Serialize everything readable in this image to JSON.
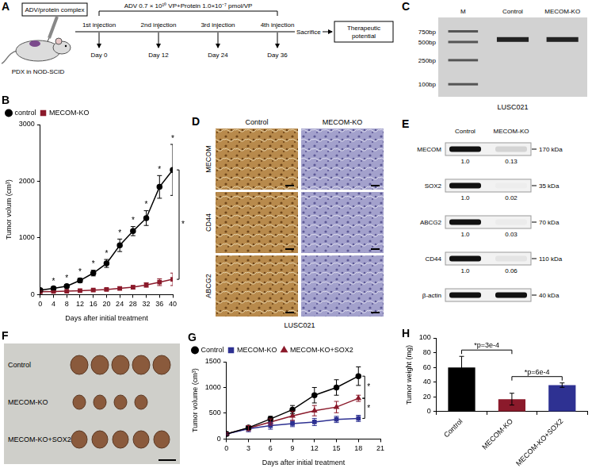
{
  "schematic": {
    "panel": "A",
    "complex": "ADV/protein complex",
    "model": "PDX in NOD-SCID",
    "dose": "ADV 0.7 × 10¹⁰ VP+Protein 1.0×10⁻⁷ pmol/VP",
    "injections": [
      {
        "label": "1st injection",
        "day": "Day 0"
      },
      {
        "label": "2nd injection",
        "day": "Day 12"
      },
      {
        "label": "3rd injection",
        "day": "Day 24"
      },
      {
        "label": "4th injection",
        "day": "Day 36"
      }
    ],
    "end": "Sacrifice",
    "outcome": "Therapeutic potential"
  },
  "gel": {
    "panel": "C",
    "lanes": [
      {
        "label": "M"
      },
      {
        "label": "Control",
        "band_bp": 550
      },
      {
        "label": "MECOM-KO",
        "band_bp": 550
      }
    ],
    "ladder": [
      {
        "value": 750,
        "label": "750bp"
      },
      {
        "value": 500,
        "label": "500bp"
      },
      {
        "value": 250,
        "label": "250bp"
      },
      {
        "value": 100,
        "label": "100bp"
      }
    ],
    "sample": "LUSC021"
  },
  "ihc": {
    "panel": "D",
    "columns": [
      "Control",
      "MECOM-KO"
    ],
    "rows": [
      "MECOM",
      "CD44",
      "ABCG2"
    ],
    "sample": "LUSC021"
  },
  "western": {
    "panel": "E",
    "columns": [
      "Control",
      "MECOM-KO"
    ],
    "rows": [
      {
        "protein": "MECOM",
        "size": "170 kDa",
        "quant": [
          "1.0",
          "0.13"
        ]
      },
      {
        "protein": "SOX2",
        "size": "35 kDa",
        "quant": [
          "1.0",
          "0.02"
        ]
      },
      {
        "protein": "ABCG2",
        "size": "70 kDa",
        "quant": [
          "1.0",
          "0.03"
        ]
      },
      {
        "protein": "CD44",
        "size": "110 kDa",
        "quant": [
          "1.0",
          "0.06"
        ]
      },
      {
        "protein": "β-actin",
        "size": "40 kDa"
      }
    ]
  },
  "photos": {
    "panel": "F",
    "rows": [
      {
        "label": "Control",
        "count": 5
      },
      {
        "label": "MECOM-KO",
        "count": 4
      },
      {
        "label": "MECOM-KO+SOX2",
        "count": 5
      }
    ]
  },
  "chart_data": [
    {
      "panel": "B",
      "type": "line",
      "x_label": "Days after initial treatment",
      "y_label": "Tumor volum (cm³)",
      "x": [
        0,
        4,
        8,
        12,
        16,
        20,
        24,
        28,
        32,
        36,
        40
      ],
      "xlim": [
        0,
        40
      ],
      "xticks": [
        0,
        4,
        8,
        12,
        16,
        20,
        24,
        28,
        32,
        36,
        40
      ],
      "ylim": [
        0,
        3000
      ],
      "yticks": [
        0,
        1000,
        2000,
        3000
      ],
      "grid": false,
      "legend": "upper left",
      "series": [
        {
          "name": "control",
          "color": "#000000",
          "marker": "circle",
          "values": [
            80,
            110,
            150,
            250,
            380,
            550,
            870,
            1120,
            1350,
            1900,
            2200
          ],
          "errors": [
            20,
            25,
            30,
            40,
            50,
            70,
            110,
            80,
            130,
            200,
            450
          ]
        },
        {
          "name": "MECOM-KO",
          "color": "#8b1a2b",
          "marker": "square",
          "values": [
            50,
            55,
            60,
            70,
            80,
            90,
            110,
            130,
            170,
            220,
            270
          ],
          "errors": [
            15,
            15,
            15,
            15,
            20,
            20,
            25,
            30,
            40,
            60,
            110
          ]
        }
      ],
      "point_annotations": {
        "text": "*",
        "x": [
          4,
          8,
          12,
          16,
          20,
          24,
          28,
          32,
          36,
          40
        ]
      },
      "bracket_annotations": [
        {
          "text": "*",
          "between": [
            "control",
            "MECOM-KO"
          ]
        }
      ]
    },
    {
      "panel": "G",
      "type": "line",
      "x_label": "Days after initial treatment",
      "y_label": "Tumor volume (cm³)",
      "x": [
        0,
        3,
        6,
        9,
        12,
        15,
        18
      ],
      "xlim": [
        0,
        21
      ],
      "xticks": [
        0,
        3,
        6,
        9,
        12,
        15,
        18,
        21
      ],
      "ylim": [
        0,
        1500
      ],
      "yticks": [
        0,
        500,
        1000,
        1500
      ],
      "grid": false,
      "legend": "upper left",
      "series": [
        {
          "name": "Control",
          "color": "#000000",
          "marker": "circle",
          "values": [
            100,
            220,
            390,
            570,
            850,
            1000,
            1220
          ],
          "errors": [
            20,
            40,
            50,
            80,
            150,
            150,
            180
          ]
        },
        {
          "name": "MECOM-KO",
          "color": "#2e3192",
          "marker": "square",
          "values": [
            100,
            200,
            260,
            300,
            330,
            380,
            400
          ],
          "errors": [
            20,
            60,
            70,
            60,
            70,
            60,
            60
          ]
        },
        {
          "name": "MECOM-KO+SOX2",
          "color": "#8b1a2b",
          "marker": "triangle",
          "values": [
            100,
            210,
            330,
            450,
            550,
            620,
            790
          ],
          "errors": [
            20,
            50,
            60,
            90,
            100,
            110,
            60
          ]
        }
      ],
      "bracket_annotations": [
        {
          "text": "*",
          "between": [
            "Control",
            "MECOM-KO+SOX2"
          ]
        },
        {
          "text": "*",
          "between": [
            "MECOM-KO+SOX2",
            "MECOM-KO"
          ]
        }
      ]
    },
    {
      "panel": "H",
      "type": "bar",
      "y_label": "Tumor weight (mg)",
      "categories": [
        "Control",
        "MECOM-KO",
        "MECOM-KO+SOX2"
      ],
      "values": [
        60,
        17,
        36
      ],
      "errors": [
        15,
        8,
        3
      ],
      "colors": [
        "#000000",
        "#8b1a2b",
        "#2e3192"
      ],
      "ylim": [
        0,
        100
      ],
      "yticks": [
        0,
        20,
        40,
        60,
        80,
        100
      ],
      "grid": false,
      "bracket_annotations": [
        {
          "text": "*p=3e-4",
          "between": [
            "Control",
            "MECOM-KO"
          ]
        },
        {
          "text": "*p=6e-4",
          "between": [
            "MECOM-KO",
            "MECOM-KO+SOX2"
          ]
        }
      ]
    }
  ]
}
